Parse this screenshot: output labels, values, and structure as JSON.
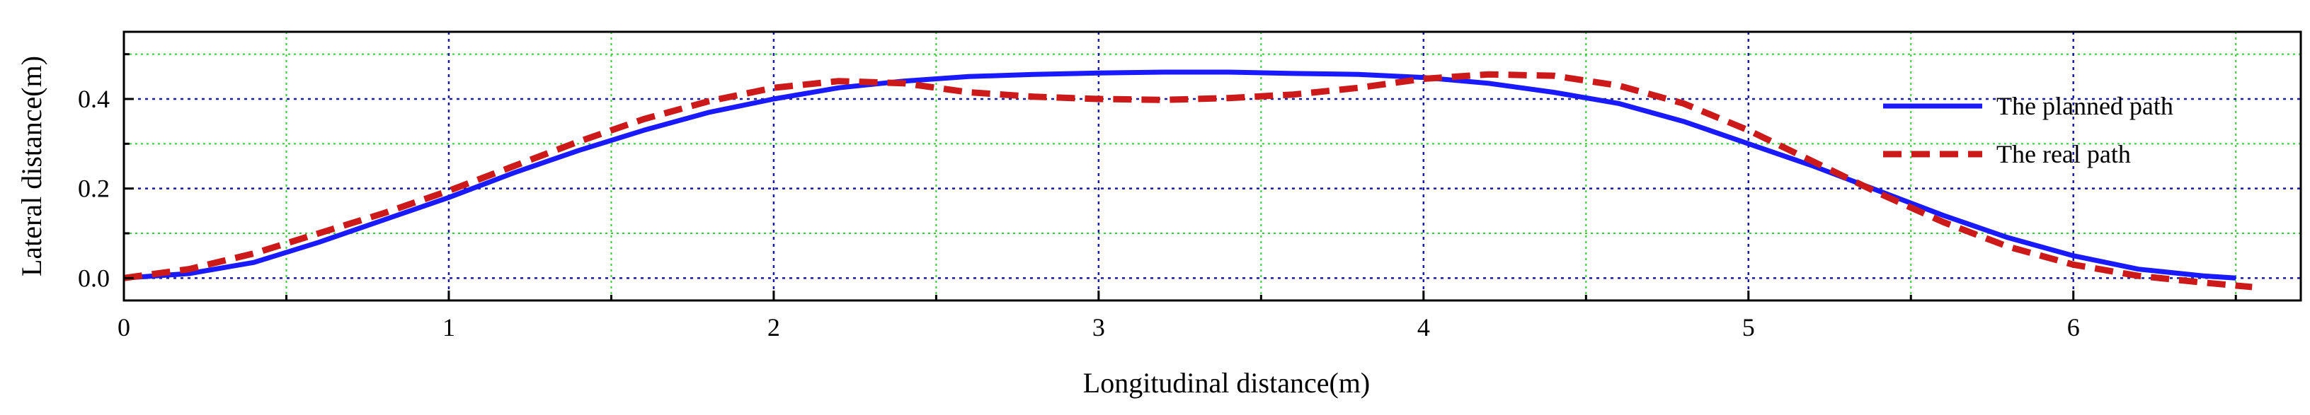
{
  "chart_data": {
    "type": "line",
    "title": "",
    "xlabel": "Longitudinal distance(m)",
    "ylabel": "Lateral distance(m)",
    "xlim": [
      0,
      6.7
    ],
    "ylim": [
      -0.05,
      0.55
    ],
    "xticks": [
      0,
      1,
      2,
      3,
      4,
      5,
      6
    ],
    "yticks": [
      0.0,
      0.2,
      0.4
    ],
    "x_tick_labels": [
      "0",
      "1",
      "2",
      "3",
      "4",
      "5",
      "6"
    ],
    "y_tick_labels": [
      "0.0",
      "0.2",
      "0.4"
    ],
    "x_minor_gridlines": [
      0.5,
      1.5,
      2.5,
      3.5,
      4.5,
      5.5,
      6.5
    ],
    "y_minor_gridlines": [
      0.1,
      0.3,
      0.5
    ],
    "grid": true,
    "legend_position": "right",
    "series": [
      {
        "name": "The planned path",
        "color": "#1a1aff",
        "style": "solid",
        "x": [
          0,
          0.2,
          0.4,
          0.6,
          0.8,
          1.0,
          1.2,
          1.4,
          1.6,
          1.8,
          2.0,
          2.2,
          2.4,
          2.6,
          2.8,
          3.0,
          3.2,
          3.4,
          3.6,
          3.8,
          4.0,
          4.2,
          4.4,
          4.6,
          4.8,
          5.0,
          5.2,
          5.4,
          5.6,
          5.8,
          6.0,
          6.2,
          6.4,
          6.5
        ],
        "y": [
          0.0,
          0.01,
          0.035,
          0.08,
          0.13,
          0.18,
          0.235,
          0.285,
          0.33,
          0.37,
          0.4,
          0.425,
          0.44,
          0.45,
          0.455,
          0.458,
          0.46,
          0.46,
          0.457,
          0.455,
          0.448,
          0.435,
          0.415,
          0.39,
          0.35,
          0.3,
          0.25,
          0.195,
          0.14,
          0.09,
          0.05,
          0.02,
          0.005,
          0.0
        ]
      },
      {
        "name": "The real path",
        "color": "#cc1a1a",
        "style": "dashed",
        "x": [
          0,
          0.2,
          0.4,
          0.6,
          0.8,
          1.0,
          1.2,
          1.4,
          1.6,
          1.8,
          2.0,
          2.2,
          2.4,
          2.6,
          2.8,
          3.0,
          3.2,
          3.4,
          3.6,
          3.8,
          4.0,
          4.2,
          4.4,
          4.6,
          4.8,
          5.0,
          5.2,
          5.4,
          5.6,
          5.8,
          6.0,
          6.2,
          6.4,
          6.55
        ],
        "y": [
          0.0,
          0.02,
          0.055,
          0.1,
          0.145,
          0.195,
          0.25,
          0.305,
          0.355,
          0.395,
          0.425,
          0.44,
          0.435,
          0.415,
          0.405,
          0.4,
          0.398,
          0.402,
          0.41,
          0.425,
          0.445,
          0.455,
          0.452,
          0.43,
          0.39,
          0.33,
          0.26,
          0.19,
          0.125,
          0.07,
          0.03,
          0.005,
          -0.01,
          -0.02
        ]
      }
    ]
  }
}
